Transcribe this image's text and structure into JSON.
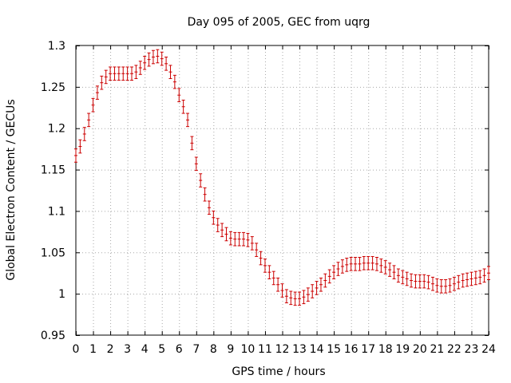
{
  "chart_data": {
    "type": "scatter",
    "title": "Day 095 of 2005, GEC from uqrg",
    "xlabel": "GPS time / hours",
    "ylabel": "Global Electron Content / GECUs",
    "xlim": [
      0,
      24
    ],
    "ylim": [
      0.95,
      1.3
    ],
    "x_ticks": [
      0,
      1,
      2,
      3,
      4,
      5,
      6,
      7,
      8,
      9,
      10,
      11,
      12,
      13,
      14,
      15,
      16,
      17,
      18,
      19,
      20,
      21,
      22,
      23,
      24
    ],
    "y_ticks": [
      0.95,
      1.0,
      1.05,
      1.1,
      1.15,
      1.2,
      1.25,
      1.3
    ],
    "y_tick_labels": [
      "0.95",
      "1",
      "1.05",
      "1.1",
      "1.15",
      "1.2",
      "1.25",
      "1.3"
    ],
    "grid": true,
    "marker_color": "#cc0000",
    "error_bar_half_width": 0.008,
    "series": [
      {
        "x": [
          0,
          0.25,
          0.5,
          0.75,
          1,
          1.25,
          1.5,
          1.75,
          2,
          2.25,
          2.5,
          2.75,
          3,
          3.25,
          3.5,
          3.75,
          4,
          4.25,
          4.5,
          4.75,
          5,
          5.25,
          5.5,
          5.75,
          6,
          6.25,
          6.5,
          6.75,
          7,
          7.25,
          7.5,
          7.75,
          8,
          8.25,
          8.5,
          8.75,
          9,
          9.25,
          9.5,
          9.75,
          10,
          10.25,
          10.5,
          10.75,
          11,
          11.25,
          11.5,
          11.75,
          12,
          12.25,
          12.5,
          12.75,
          13,
          13.25,
          13.5,
          13.75,
          14,
          14.25,
          14.5,
          14.75,
          15,
          15.25,
          15.5,
          15.75,
          16,
          16.25,
          16.5,
          16.75,
          17,
          17.25,
          17.5,
          17.75,
          18,
          18.25,
          18.5,
          18.75,
          19,
          19.25,
          19.5,
          19.75,
          20,
          20.25,
          20.5,
          20.75,
          21,
          21.25,
          21.5,
          21.75,
          22,
          22.25,
          22.5,
          22.75,
          23,
          23.25,
          23.5,
          23.75,
          24
        ],
        "y": [
          1.167,
          1.178,
          1.193,
          1.21,
          1.228,
          1.243,
          1.255,
          1.262,
          1.266,
          1.266,
          1.266,
          1.266,
          1.266,
          1.266,
          1.268,
          1.273,
          1.279,
          1.283,
          1.286,
          1.287,
          1.284,
          1.278,
          1.268,
          1.256,
          1.24,
          1.226,
          1.21,
          1.182,
          1.157,
          1.137,
          1.12,
          1.104,
          1.092,
          1.083,
          1.077,
          1.072,
          1.067,
          1.066,
          1.066,
          1.066,
          1.065,
          1.061,
          1.053,
          1.043,
          1.034,
          1.026,
          1.019,
          1.011,
          1.004,
          0.997,
          0.995,
          0.994,
          0.994,
          0.996,
          0.999,
          1.003,
          1.007,
          1.011,
          1.016,
          1.021,
          1.026,
          1.03,
          1.033,
          1.035,
          1.036,
          1.036,
          1.036,
          1.037,
          1.037,
          1.037,
          1.036,
          1.034,
          1.032,
          1.029,
          1.026,
          1.022,
          1.02,
          1.018,
          1.016,
          1.015,
          1.015,
          1.015,
          1.014,
          1.012,
          1.01,
          1.009,
          1.009,
          1.01,
          1.012,
          1.014,
          1.016,
          1.017,
          1.018,
          1.019,
          1.02,
          1.022,
          1.025
        ]
      }
    ]
  }
}
